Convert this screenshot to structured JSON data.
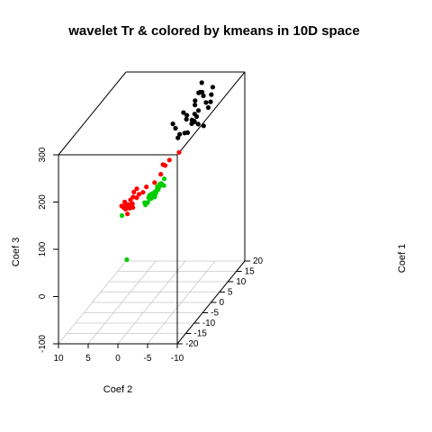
{
  "chart_data": {
    "type": "scatter",
    "title": "wavelet Tr & colored by kmeans in 10D space",
    "xlabel": "Coef 2",
    "ylabel": "Coef 1",
    "zlabel": "Coef 3",
    "xlim": [
      10,
      -10
    ],
    "ylim": [
      -20,
      20
    ],
    "zlim": [
      -100,
      300
    ],
    "x_ticks": [
      10,
      5,
      0,
      -5,
      -10
    ],
    "y_ticks": [
      -20,
      -15,
      -10,
      -5,
      0,
      5,
      10,
      15,
      20
    ],
    "z_ticks": [
      -100,
      0,
      100,
      200,
      300
    ],
    "grid": "floor",
    "series": [
      {
        "color": "#000000",
        "points": [
          [
            -2.99,
            8.37,
            265
          ],
          [
            -2.22,
            4.76,
            257
          ],
          [
            -4.32,
            5.38,
            264
          ],
          [
            -3.4,
            2.19,
            259
          ],
          [
            -5.01,
            13.05,
            280
          ],
          [
            -3.6,
            8.2,
            260
          ],
          [
            -6.02,
            4.19,
            264
          ],
          [
            -4.11,
            11.16,
            269
          ],
          [
            -5.17,
            5.69,
            261
          ],
          [
            -5.85,
            0.76,
            256
          ],
          [
            -5.51,
            16.81,
            282
          ],
          [
            -3.94,
            1.7,
            241
          ],
          [
            -4.55,
            13.91,
            284
          ],
          [
            -7.03,
            10.19,
            280
          ],
          [
            -4.66,
            0.17,
            255
          ],
          [
            -4.42,
            12.26,
            290
          ],
          [
            -7.09,
            2.6,
            266
          ],
          [
            -5.93,
            6.85,
            276
          ],
          [
            -6.32,
            4.4,
            274
          ],
          [
            -7.44,
            7.37,
            280
          ],
          [
            -4.46,
            10.04,
            283
          ],
          [
            -6.04,
            14.12,
            278
          ],
          [
            -5.88,
            3.05,
            265
          ],
          [
            -5.97,
            11.2,
            274
          ],
          [
            -5.38,
            6.54,
            270
          ],
          [
            -5.75,
            4.97,
            262
          ],
          [
            -3.71,
            16.64,
            292
          ],
          [
            -4.34,
            13.48,
            286
          ],
          [
            -5.01,
            1.94,
            250
          ],
          [
            -7.86,
            3.15,
            260
          ]
        ]
      },
      {
        "color": "#ff0000",
        "points": [
          [
            2.7,
            -3.89,
            124
          ],
          [
            2.23,
            -3.49,
            124
          ],
          [
            3.61,
            -3.25,
            127
          ],
          [
            2.96,
            -4.21,
            118
          ],
          [
            3.32,
            -3.85,
            126
          ],
          [
            1.99,
            -0.48,
            131
          ],
          [
            2.2,
            -6.58,
            116
          ],
          [
            3.17,
            -5.75,
            127
          ],
          [
            2.55,
            -2.03,
            132
          ],
          [
            2.04,
            -3.95,
            118
          ],
          [
            2.65,
            -3.79,
            121
          ],
          [
            3.3,
            -5.0,
            123
          ],
          [
            1.18,
            1.05,
            140
          ],
          [
            3.7,
            -4.77,
            125
          ],
          [
            1.78,
            1.15,
            128
          ],
          [
            3.13,
            -4.5,
            117
          ],
          [
            0.04,
            8.16,
            154
          ],
          [
            -1.02,
            12.69,
            162
          ],
          [
            0.77,
            4.47,
            134
          ],
          [
            2.75,
            -0.81,
            137
          ],
          [
            -0.07,
            10.34,
            156
          ],
          [
            3.11,
            -3.9,
            117
          ],
          [
            0.34,
            6.66,
            142
          ],
          [
            0.4,
            8.12,
            156
          ],
          [
            2.15,
            -5.38,
            123
          ],
          [
            2.09,
            -1.48,
            128
          ],
          [
            2.98,
            -2.07,
            126
          ],
          [
            2.8,
            1.04,
            136
          ]
        ]
      },
      {
        "color": "#00cc00",
        "points": [
          [
            0.23,
            2.72,
            114
          ],
          [
            0.34,
            0.78,
            120
          ],
          [
            0.02,
            1.87,
            115
          ],
          [
            1.38,
            0.72,
            108
          ],
          [
            0.08,
            3.58,
            122
          ],
          [
            -0.05,
            4.63,
            130
          ],
          [
            0.99,
            2.13,
            117
          ],
          [
            0.04,
            0.84,
            127
          ],
          [
            0.82,
            1.08,
            117
          ],
          [
            -0.54,
            5.58,
            137
          ],
          [
            0.52,
            1.66,
            113
          ],
          [
            -0.13,
            3.41,
            124
          ],
          [
            0.41,
            1.73,
            121
          ],
          [
            0.88,
            -0.59,
            109
          ],
          [
            -0.23,
            2.55,
            134
          ],
          [
            -0.75,
            4.62,
            127
          ],
          [
            0.12,
            1.88,
            122
          ],
          [
            -0.21,
            4.3,
            128
          ],
          [
            0.54,
            2.21,
            116
          ],
          [
            -0.2,
            5.25,
            128
          ],
          [
            0.42,
            1.42,
            118
          ],
          [
            0.7,
            1.37,
            113
          ],
          [
            0.17,
            3.09,
            118
          ],
          [
            0.42,
            1.06,
            124
          ],
          [
            -0.53,
            3.78,
            135
          ],
          [
            0.39,
            4.46,
            119
          ],
          [
            0.26,
            3.31,
            117
          ],
          [
            0.59,
            2.0,
            114
          ],
          [
            0.17,
            4.62,
            120
          ],
          [
            0.31,
            3.19,
            120
          ],
          [
            0.69,
            0.09,
            111
          ],
          [
            0.83,
            1.95,
            111
          ],
          [
            0.3,
            1.8,
            119
          ],
          [
            4.08,
            -3.23,
            98
          ],
          [
            0.26,
            2.89,
            121
          ],
          [
            2.07,
            -7.42,
            23
          ]
        ]
      }
    ]
  }
}
